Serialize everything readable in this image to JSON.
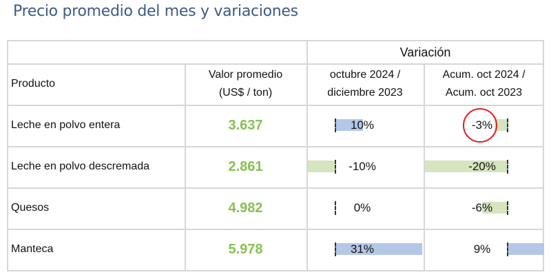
{
  "title": "Precio promedio del mes y variaciones",
  "header": {
    "group": "Variación",
    "product": "Producto",
    "value_line1": "Valor promedio",
    "value_line2": "(US$ / ton)",
    "var1_line1": "octubre 2024 /",
    "var1_line2": "diciembre 2023",
    "var2_line1": "Acum. oct 2024 /",
    "var2_line2": "Acum. oct 2023"
  },
  "colors": {
    "positive": "#b4c7e7",
    "negative": "#d6e4bf",
    "price": "#86c14f",
    "highlight_circle": "#e31b1b"
  },
  "rows": [
    {
      "product": "Leche en polvo entera",
      "value": "3.637",
      "var1": 10,
      "var1_label": "10%",
      "var2": -3,
      "var2_label": "-3%",
      "var2_highlighted": true
    },
    {
      "product": "Leche en polvo descremada",
      "value": "2.861",
      "var1": -10,
      "var1_label": "-10%",
      "var2": -20,
      "var2_label": "-20%"
    },
    {
      "product": "Quesos",
      "value": "4.982",
      "var1": 0,
      "var1_label": "0%",
      "var2": -6,
      "var2_label": "-6%"
    },
    {
      "product": "Manteca",
      "value": "5.978",
      "var1": 31,
      "var1_label": "31%",
      "var2": 9,
      "var2_label": "9%"
    }
  ]
}
